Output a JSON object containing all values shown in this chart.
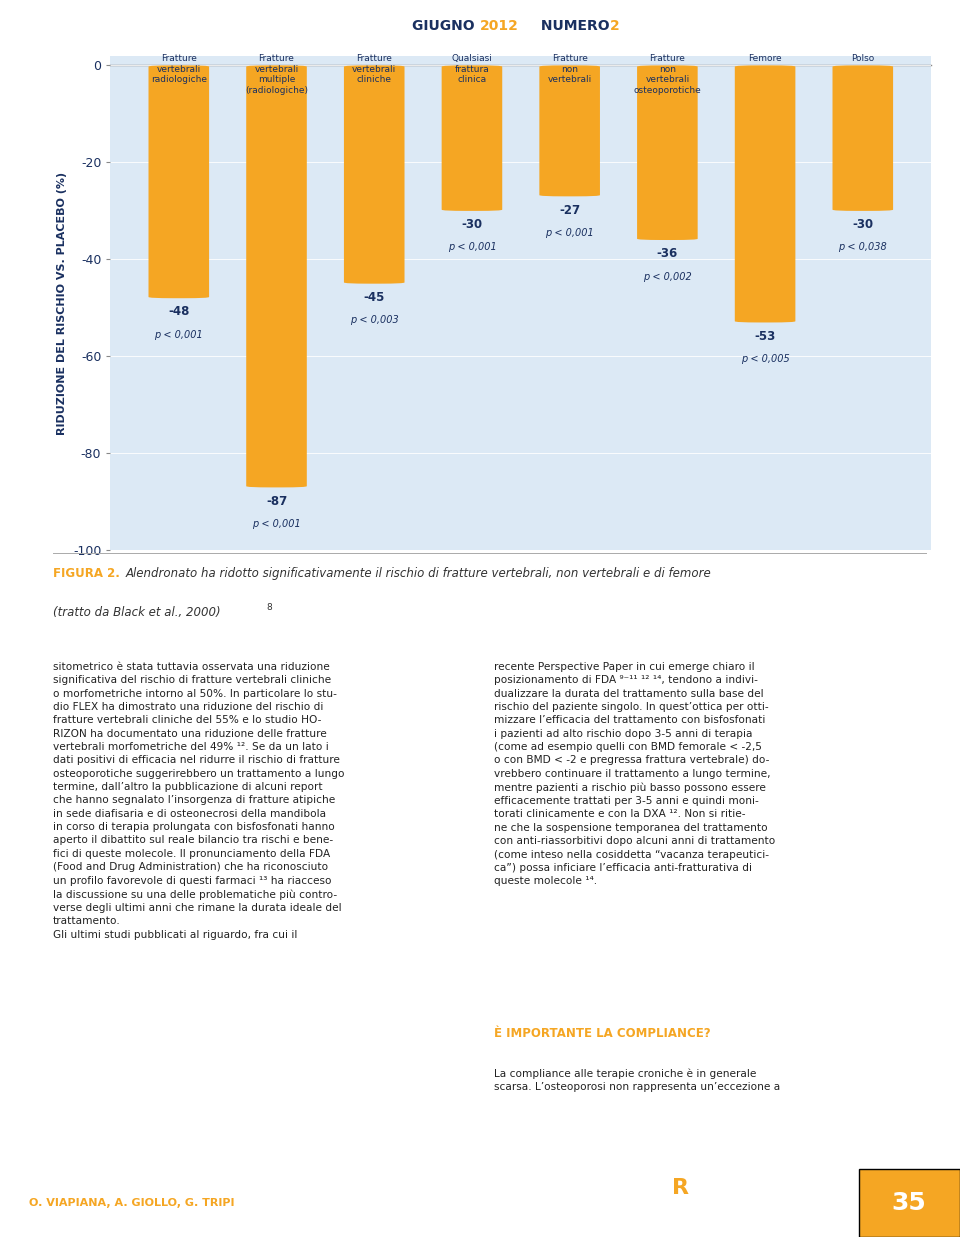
{
  "page_title": "GIUGNO 2012 NUMERO 2",
  "categories": [
    "Fratture\nvertebrali\nradiologiche",
    "Fratture\nvertebrali\nmultiple\n(radiologiche)",
    "Fratture\nvertebrali\ncliniche",
    "Qualsiasi\nfrattura\nclinica",
    "Fratture\nnon\nvertebrali",
    "Fratture\nnon\nvertebrali\nosteoporotiche",
    "Femore",
    "Polso"
  ],
  "values": [
    -48,
    -87,
    -45,
    -30,
    -27,
    -36,
    -53,
    -30
  ],
  "pvalues": [
    "p < 0,001",
    "p < 0,001",
    "p < 0,003",
    "p < 0,001",
    "p < 0,001",
    "p < 0,002",
    "p < 0,005",
    "p < 0,038"
  ],
  "bar_color": "#f5a623",
  "plot_bg_color": "#dce9f5",
  "ylabel": "RIDUZIONE DEL RISCHIO VS. PLACEBO (%)",
  "ylim": [
    -100,
    0
  ],
  "yticks": [
    0,
    -20,
    -40,
    -60,
    -80,
    -100
  ],
  "footer_left": "O. VIAPIANA, A. GIOLLO, G. TRIPI",
  "footer_page_num": "35"
}
